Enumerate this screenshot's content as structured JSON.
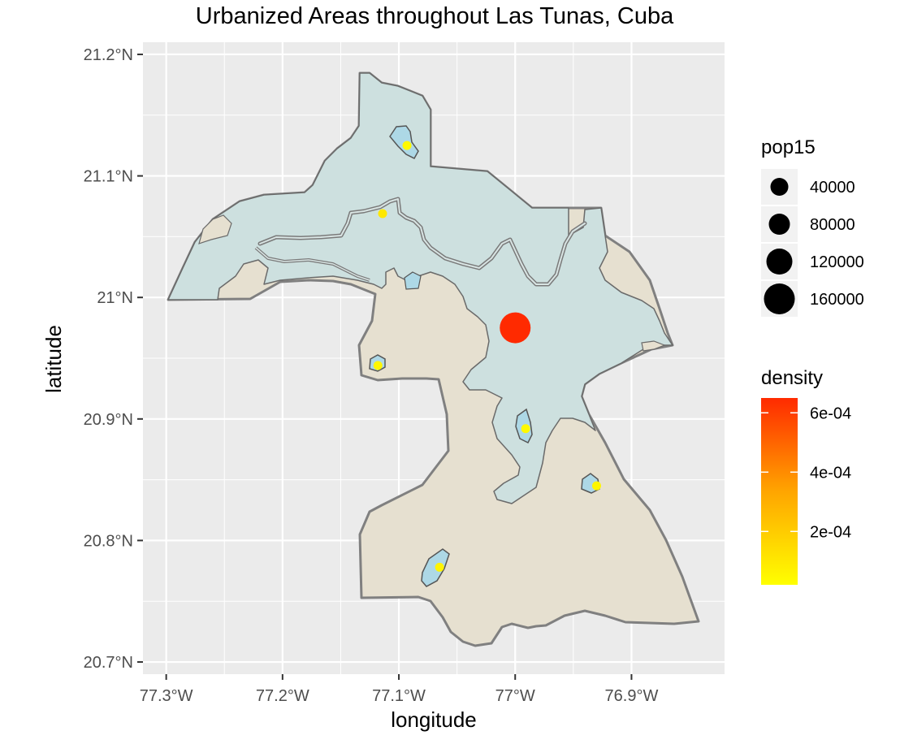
{
  "title": "Urbanized Areas throughout Las Tunas, Cuba",
  "axes": {
    "xlabel": "longitude",
    "ylabel": "latitude",
    "x_ticks": [
      {
        "value": -77.3,
        "label": "77.3°W"
      },
      {
        "value": -77.2,
        "label": "77.2°W"
      },
      {
        "value": -77.1,
        "label": "77.1°W"
      },
      {
        "value": -77.0,
        "label": "77°W"
      },
      {
        "value": -76.9,
        "label": "76.9°W"
      }
    ],
    "y_ticks": [
      {
        "value": 21.2,
        "label": "21.2°N"
      },
      {
        "value": 21.1,
        "label": "21.1°N"
      },
      {
        "value": 21.0,
        "label": "21°N"
      },
      {
        "value": 20.9,
        "label": "20.9°N"
      },
      {
        "value": 20.8,
        "label": "20.8°N"
      },
      {
        "value": 20.7,
        "label": "20.7°N"
      }
    ],
    "xlim": [
      -77.32,
      -76.82
    ],
    "ylim": [
      20.69,
      21.21
    ]
  },
  "legend_size": {
    "title": "pop15",
    "entries": [
      {
        "label": "40000",
        "value": 40000
      },
      {
        "label": "80000",
        "value": 80000
      },
      {
        "label": "120000",
        "value": 120000
      },
      {
        "label": "160000",
        "value": 160000
      }
    ]
  },
  "legend_color": {
    "title": "density",
    "labels": [
      {
        "label": "6e-04",
        "value": 0.0006
      },
      {
        "label": "4e-04",
        "value": 0.0004
      },
      {
        "label": "2e-04",
        "value": 0.0002
      }
    ],
    "range": [
      2e-05,
      0.00065
    ],
    "low_color": "#ffff00",
    "high_color": "#ff2a00"
  },
  "colors": {
    "panel_background": "#ebebeb",
    "grid": "#ffffff",
    "municipality_fill": "#e6e0d0",
    "urban_zone_fill": "#cde0df",
    "settlement_fill": "#add8e6",
    "outline": "#808080"
  },
  "chart_data": {
    "type": "scatter",
    "title": "Urbanized Areas throughout Las Tunas, Cuba",
    "xlabel": "longitude",
    "ylabel": "latitude",
    "xlim": [
      -77.32,
      -76.82
    ],
    "ylim": [
      20.69,
      21.21
    ],
    "grid": true,
    "legend_placement": "right",
    "points": [
      {
        "lon": -77.0,
        "lat": 20.975,
        "pop15": 160000,
        "density": 0.00065
      },
      {
        "lon": -77.114,
        "lat": 21.069,
        "pop15": 9000,
        "density": 0.0001
      },
      {
        "lon": -77.093,
        "lat": 21.125,
        "pop15": 2500,
        "density": 4e-05
      },
      {
        "lon": -77.118,
        "lat": 20.944,
        "pop15": 3000,
        "density": 5e-05
      },
      {
        "lon": -76.991,
        "lat": 20.892,
        "pop15": 2500,
        "density": 4e-05
      },
      {
        "lon": -76.93,
        "lat": 20.845,
        "pop15": 2500,
        "density": 5e-05
      },
      {
        "lon": -77.065,
        "lat": 20.778,
        "pop15": 3500,
        "density": 6e-05
      }
    ],
    "regions": [
      {
        "type": "municipality_boundary",
        "fill": "#e6e0d0"
      },
      {
        "type": "urbanized_zone",
        "fill": "#cde0df"
      },
      {
        "type": "settlement",
        "count": 6,
        "fill": "#add8e6"
      },
      {
        "type": "river"
      }
    ]
  }
}
